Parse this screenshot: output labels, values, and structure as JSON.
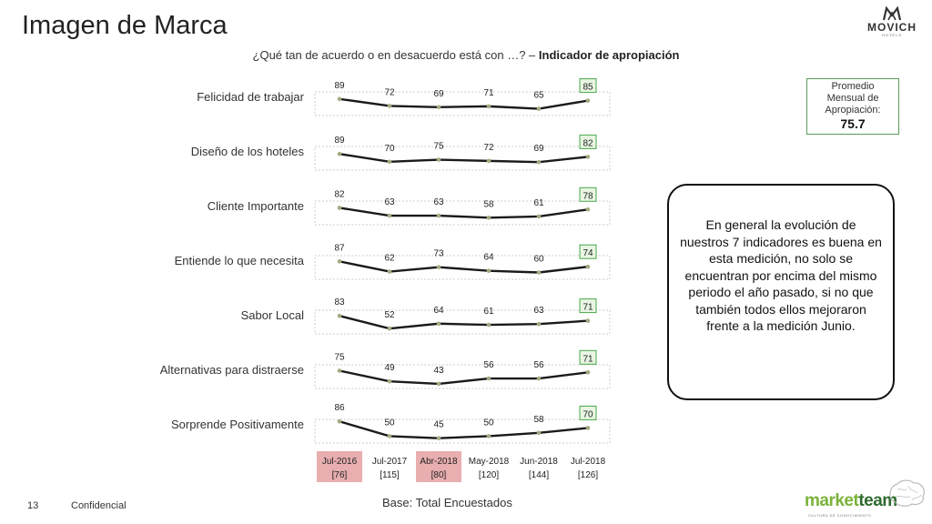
{
  "header": {
    "title": "Imagen de Marca",
    "question": "¿Qué tan de acuerdo o en desacuerdo está con …? – ",
    "question_bold": "Indicador de apropiación"
  },
  "brand_logo": {
    "name": "MOVICH",
    "sub": "HOTELS"
  },
  "average_box": {
    "label_line1": "Promedio",
    "label_line2": "Mensual de",
    "label_line3": "Apropiación:",
    "value": "75.7"
  },
  "note": {
    "text": "En general la evolución de nuestros 7 indicadores es buena en esta medición, no solo se encuentran por encima del mismo periodo el año pasado, si no que también todos ellos mejoraron frente a la medición Junio."
  },
  "footer": {
    "page": "13",
    "confidential": "Confidencial",
    "base": "Base: Total Encuestados"
  },
  "marketteam_logo": {
    "word_a": "market",
    "word_b": "team",
    "tagline": "CULTURA DE CONOCIMIENTO"
  },
  "colors": {
    "line": "#1a1a1a",
    "marker": "#a8a882",
    "band": "#cccccc",
    "last_box_border": "#4aa84a",
    "last_box_fill": "#e8f5e2",
    "highlight_period": "#e8aeb0"
  },
  "chart_data": {
    "type": "line",
    "categories": [
      "Jul-2016",
      "Jul-2017",
      "Abr-2018",
      "May-2018",
      "Jun-2018",
      "Jul-2018"
    ],
    "sample_sizes": [
      "[76]",
      "[115]",
      "[80]",
      "[120]",
      "[144]",
      "[126]"
    ],
    "highlighted_categories": [
      "Jul-2016",
      "Abr-2018"
    ],
    "series": [
      {
        "name": "Felicidad de trabajar",
        "values": [
          89,
          72,
          69,
          71,
          65,
          85
        ]
      },
      {
        "name": "Diseño de los hoteles",
        "values": [
          89,
          70,
          75,
          72,
          69,
          82
        ]
      },
      {
        "name": "Cliente Importante",
        "values": [
          82,
          63,
          63,
          58,
          61,
          78
        ]
      },
      {
        "name": "Entiende lo que necesita",
        "values": [
          87,
          62,
          73,
          64,
          60,
          74
        ]
      },
      {
        "name": "Sabor Local",
        "values": [
          83,
          52,
          64,
          61,
          63,
          71
        ]
      },
      {
        "name": "Alternativas para distraerse",
        "values": [
          75,
          49,
          43,
          56,
          56,
          71
        ]
      },
      {
        "name": "Sorprende Positivamente",
        "values": [
          86,
          50,
          45,
          50,
          58,
          70
        ]
      }
    ],
    "last_value_boxed": true
  }
}
